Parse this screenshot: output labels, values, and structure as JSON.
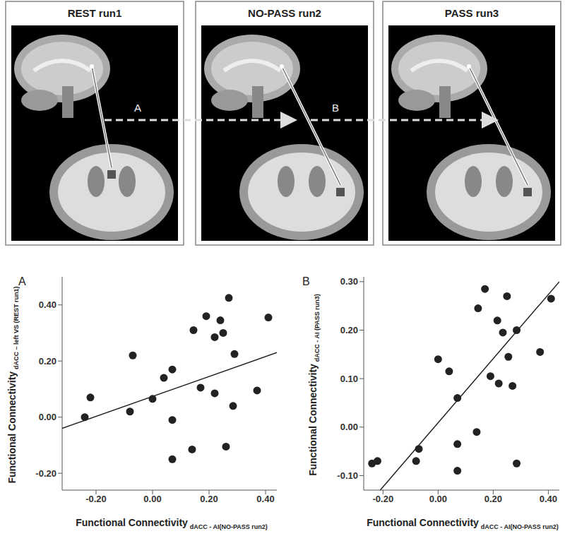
{
  "diagram": {
    "panels": [
      {
        "title": "REST run1"
      },
      {
        "title": "NO-PASS run2"
      },
      {
        "title": "PASS run3"
      }
    ],
    "arrows": [
      {
        "label": "A"
      },
      {
        "label": "B"
      }
    ]
  },
  "chart_data": [
    {
      "type": "scatter",
      "title": "A",
      "x_label": {
        "text": "Functional Connectivity",
        "subscript": "dACC - AI(NO-PASS run2)"
      },
      "y_label": {
        "text": "Functional Connectivity",
        "subscript": "dACC – left VS (REST run1)"
      },
      "color": "#222222",
      "marker": "circle",
      "x": [
        -0.24,
        -0.22,
        -0.07,
        -0.08,
        0.0,
        0.04,
        0.07,
        0.07,
        0.07,
        0.14,
        0.145,
        0.17,
        0.19,
        0.22,
        0.22,
        0.24,
        0.25,
        0.26,
        0.27,
        0.285,
        0.29,
        0.37,
        0.41
      ],
      "values": [
        0.0,
        0.07,
        0.22,
        0.02,
        0.065,
        0.14,
        0.17,
        -0.01,
        -0.15,
        -0.115,
        0.31,
        0.105,
        0.36,
        0.085,
        0.285,
        0.345,
        0.3,
        -0.105,
        0.425,
        0.04,
        0.225,
        0.095,
        0.355
      ],
      "fit": {
        "x": [
          -0.32,
          0.44
        ],
        "values": [
          -0.04,
          0.23
        ]
      },
      "xlim": [
        -0.32,
        0.44
      ],
      "xticks": [
        {
          "value": -0.2,
          "label": "-0.20"
        },
        {
          "value": 0,
          "label": "0.00"
        },
        {
          "value": 0.2,
          "label": "0.20"
        },
        {
          "value": 0.4,
          "label": "0.40"
        }
      ],
      "ylim": [
        -0.26,
        0.5
      ],
      "yticks": [
        {
          "value": -0.2,
          "label": "-0.20"
        },
        {
          "value": 0,
          "label": "0.00"
        },
        {
          "value": 0.2,
          "label": "0.20"
        },
        {
          "value": 0.4,
          "label": "0.40"
        }
      ],
      "grid": false
    },
    {
      "type": "scatter",
      "title": "B",
      "x_label": {
        "text": "Functional Connectivity",
        "subscript": "dACC - AI(NO-PASS run2)"
      },
      "y_label": {
        "text": "Functional Connectivity",
        "subscript": "dACC - AI  (PASS run3)"
      },
      "color": "#222222",
      "marker": "circle",
      "x": [
        -0.24,
        -0.22,
        -0.08,
        -0.07,
        0.0,
        0.04,
        0.07,
        0.07,
        0.07,
        0.14,
        0.145,
        0.17,
        0.19,
        0.215,
        0.22,
        0.235,
        0.25,
        0.255,
        0.27,
        0.285,
        0.285,
        0.37,
        0.41
      ],
      "values": [
        -0.075,
        -0.07,
        -0.07,
        -0.045,
        0.14,
        0.115,
        0.06,
        -0.035,
        -0.09,
        -0.01,
        0.245,
        0.285,
        0.105,
        0.22,
        0.09,
        0.195,
        0.27,
        0.145,
        0.085,
        0.2,
        -0.075,
        0.155,
        0.265
      ],
      "fit": {
        "x": [
          -0.21,
          0.44
        ],
        "values": [
          -0.13,
          0.3
        ]
      },
      "xlim": [
        -0.27,
        0.44
      ],
      "xticks": [
        {
          "value": -0.2,
          "label": "-0.20"
        },
        {
          "value": 0,
          "label": "0.00"
        },
        {
          "value": 0.2,
          "label": "0.20"
        },
        {
          "value": 0.4,
          "label": "0.40"
        }
      ],
      "ylim": [
        -0.13,
        0.31
      ],
      "yticks": [
        {
          "value": -0.1,
          "label": "-0.10"
        },
        {
          "value": 0,
          "label": "0.00"
        },
        {
          "value": 0.1,
          "label": "0.10"
        },
        {
          "value": 0.2,
          "label": "0.20"
        },
        {
          "value": 0.3,
          "label": "0.30"
        }
      ],
      "grid": false
    }
  ]
}
